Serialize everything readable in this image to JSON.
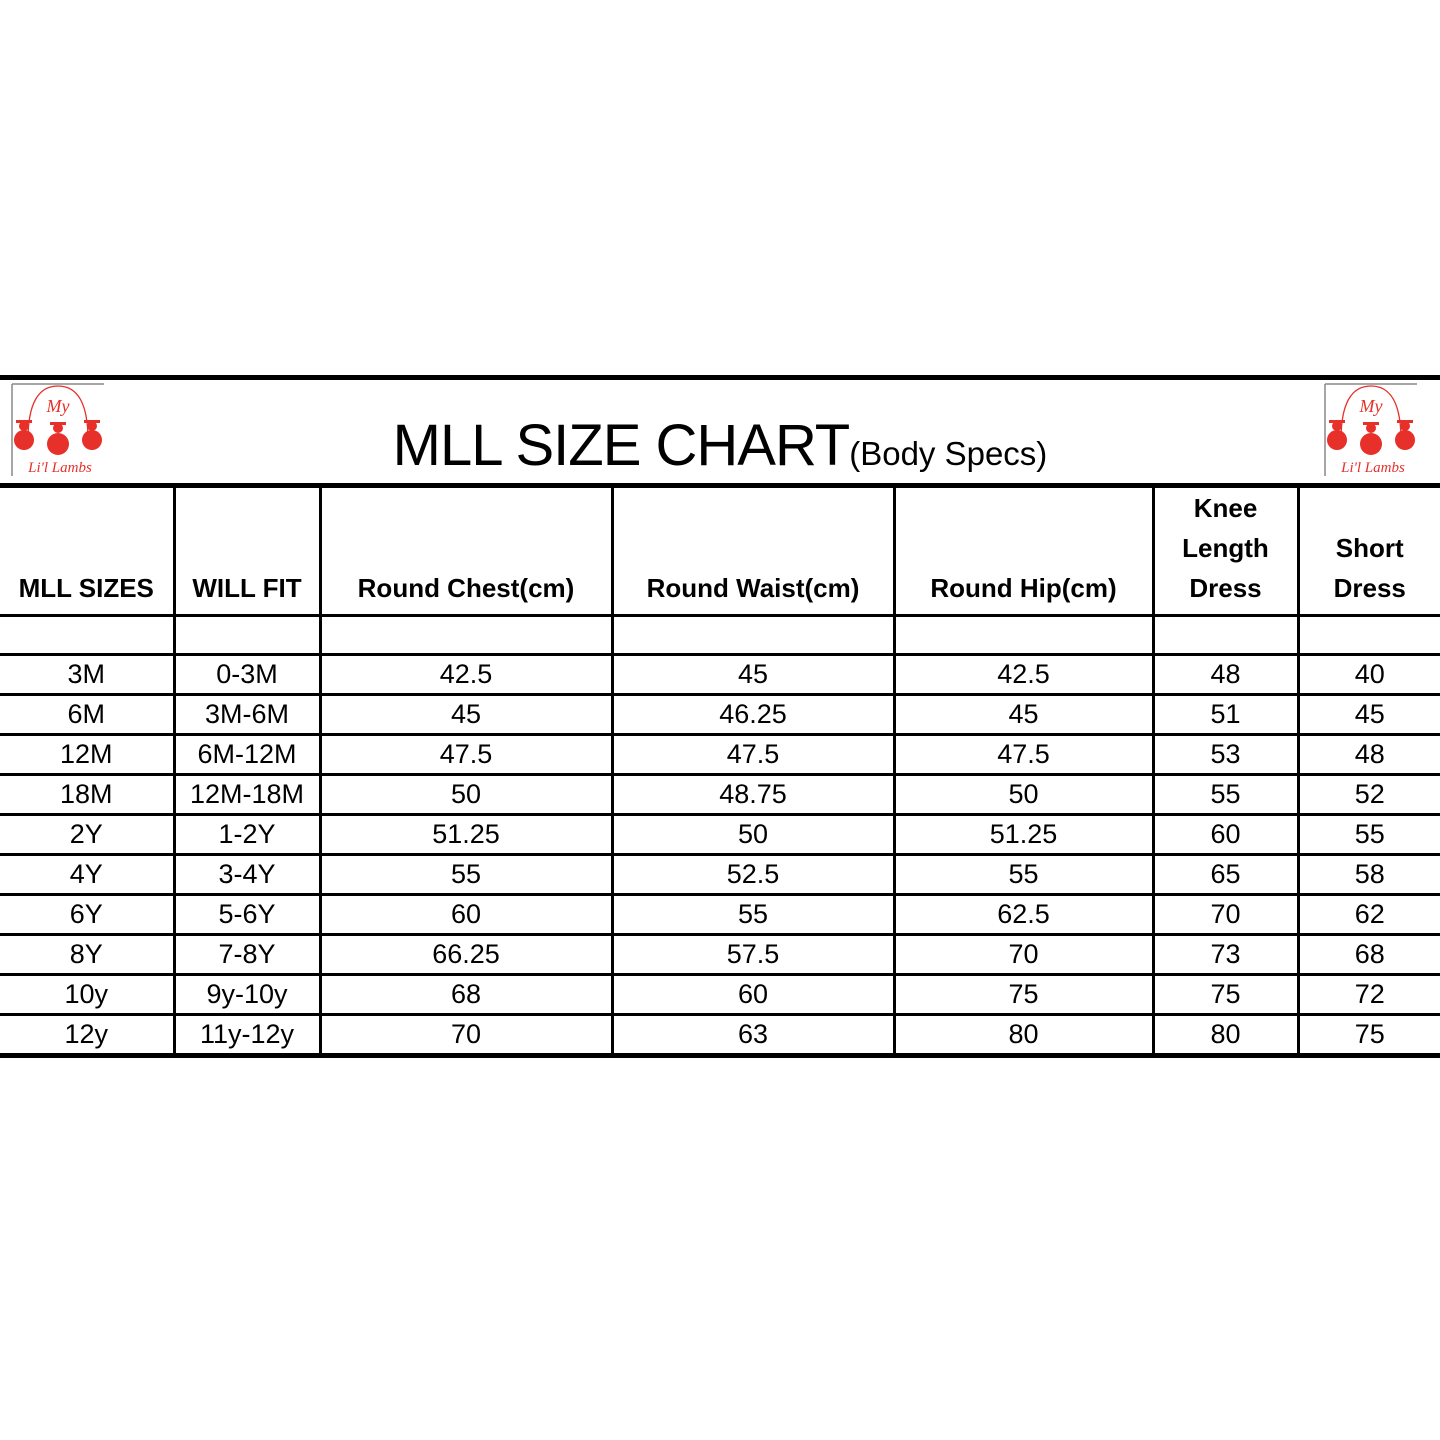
{
  "title": {
    "main": "MLL SIZE CHART",
    "sub": "(Body Specs)"
  },
  "logo": {
    "text_top": "My",
    "text_bottom": "Li'l Lambs",
    "color": "#e8302a"
  },
  "table": {
    "headers": [
      "MLL SIZES",
      "WILL FIT",
      "Round Chest(cm)",
      "Round Waist(cm)",
      "Round Hip(cm)",
      "Knee Length Dress",
      "Short Dress"
    ],
    "rows": [
      [
        "3M",
        "0-3M",
        "42.5",
        "45",
        "42.5",
        "48",
        "40"
      ],
      [
        "6M",
        "3M-6M",
        "45",
        "46.25",
        "45",
        "51",
        "45"
      ],
      [
        "12M",
        "6M-12M",
        "47.5",
        "47.5",
        "47.5",
        "53",
        "48"
      ],
      [
        "18M",
        "12M-18M",
        "50",
        "48.75",
        "50",
        "55",
        "52"
      ],
      [
        "2Y",
        "1-2Y",
        "51.25",
        "50",
        "51.25",
        "60",
        "55"
      ],
      [
        "4Y",
        "3-4Y",
        "55",
        "52.5",
        "55",
        "65",
        "58"
      ],
      [
        "6Y",
        "5-6Y",
        "60",
        "55",
        "62.5",
        "70",
        "62"
      ],
      [
        "8Y",
        "7-8Y",
        "66.25",
        "57.5",
        "70",
        "73",
        "68"
      ],
      [
        "10y",
        "9y-10y",
        "68",
        "60",
        "75",
        "75",
        "72"
      ],
      [
        "12y",
        "11y-12y",
        "70",
        "63",
        "80",
        "80",
        "75"
      ]
    ]
  }
}
